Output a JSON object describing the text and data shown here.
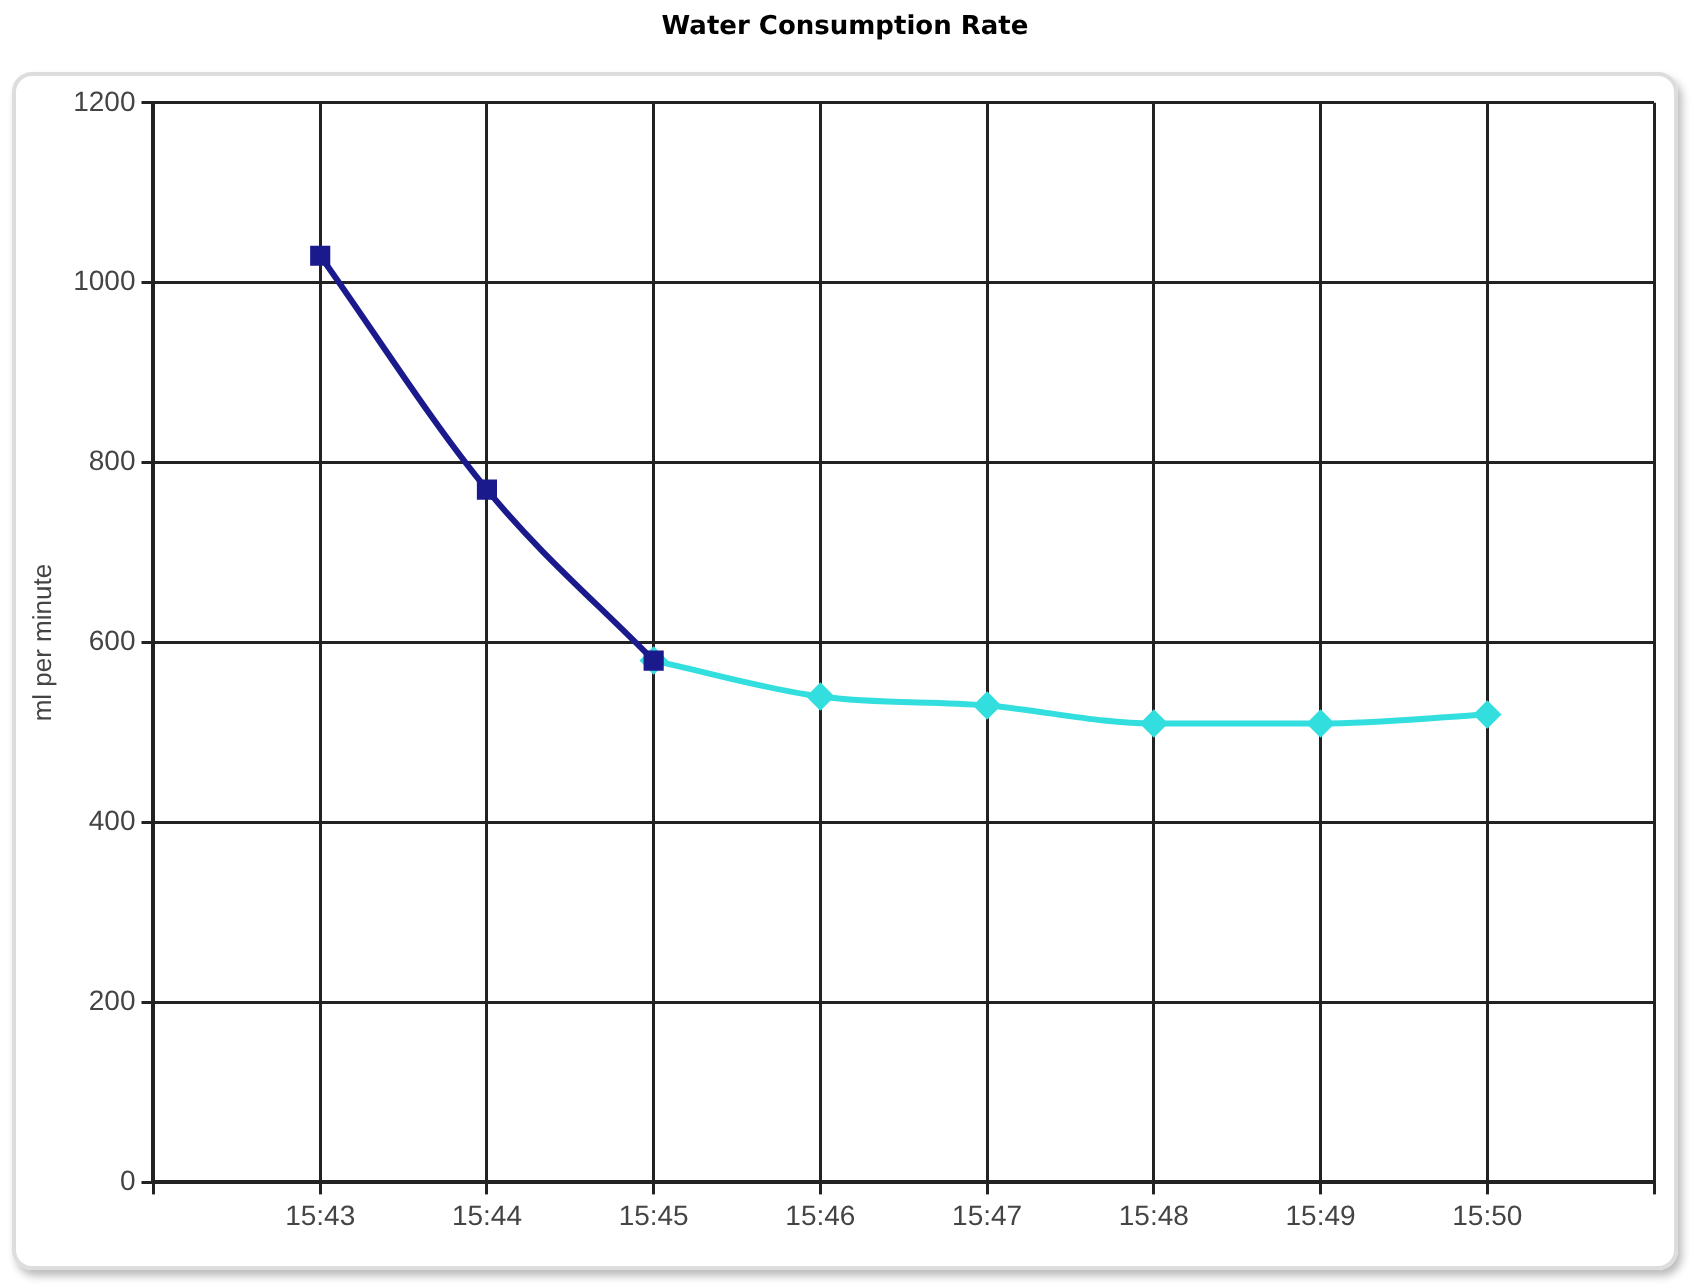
{
  "chart_data": {
    "type": "line",
    "title": "Water Consumption Rate",
    "ylabel": "ml per minute",
    "categories": [
      null,
      "15:43",
      "15:44",
      "15:45",
      "15:46",
      "15:47",
      "15:48",
      "15:49",
      "15:50",
      null
    ],
    "series": [
      {
        "color": "#1a1a8c",
        "marker": "square",
        "values": [
          null,
          1030,
          770,
          580,
          null,
          null,
          null,
          null,
          null,
          null
        ]
      },
      {
        "color": "#33dede",
        "marker": "diamond",
        "values": [
          null,
          null,
          null,
          580,
          540,
          530,
          510,
          510,
          520,
          null
        ]
      }
    ],
    "ylim": [
      0,
      1200
    ],
    "yticks": [
      0,
      200,
      400,
      600,
      800,
      1000,
      1200
    ],
    "grid": true,
    "legend": false,
    "line_style": "solid"
  }
}
